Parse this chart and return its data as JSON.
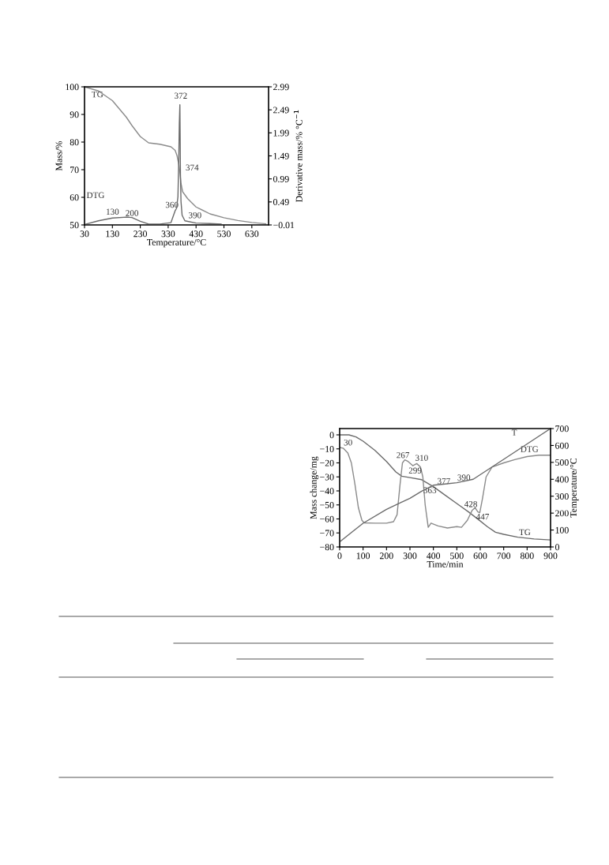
{
  "chart_data": [
    {
      "type": "line",
      "xlabel": "Temperature/°C",
      "ylabel": "Mass/%",
      "y2label": "Derivative mass/% °C$^{−1}$",
      "xlim": [
        30,
        690
      ],
      "xticks": [
        30,
        130,
        230,
        330,
        430,
        530,
        630
      ],
      "ylim": [
        50,
        100
      ],
      "yticks": [
        50,
        60,
        70,
        80,
        90,
        100
      ],
      "y2lim": [
        -0.01,
        2.99
      ],
      "y2ticks": [
        {
          "value": -0.01,
          "label": "−0.01"
        },
        0.49,
        0.99,
        1.49,
        1.99,
        2.49,
        2.99
      ],
      "grid": false,
      "legend": false,
      "series": [
        {
          "color": "#8a8a8a",
          "x": [
            30,
            80,
            130,
            180,
            200,
            230,
            260,
            300,
            340,
            355,
            362,
            368,
            372,
            376,
            382,
            400,
            430,
            480,
            530,
            580,
            630,
            680
          ],
          "values": [
            100,
            98.5,
            95,
            89,
            86,
            82,
            79.7,
            79.2,
            78.3,
            77,
            75,
            72,
            69,
            65,
            62,
            59.5,
            56.5,
            54,
            52.6,
            51.6,
            50.9,
            50.4
          ]
        },
        {
          "color": "#6a6a6a",
          "axis": "y2",
          "x": [
            30,
            80,
            130,
            180,
            200,
            230,
            260,
            300,
            340,
            355,
            360,
            365,
            368,
            370,
            372,
            374,
            376,
            380,
            390,
            430,
            480,
            520
          ],
          "values": [
            0.0,
            0.08,
            0.14,
            0.16,
            0.15,
            0.07,
            0.01,
            0.01,
            0.04,
            0.3,
            0.35,
            0.6,
            1.4,
            2.2,
            2.6,
            1.1,
            0.5,
            0.2,
            0.08,
            0.03,
            0.02,
            0.01
          ]
        }
      ],
      "annotations": [
        "TG",
        "372",
        "374",
        "DTG",
        "130",
        "200",
        "360",
        "390"
      ]
    },
    {
      "type": "line",
      "xlabel": "Time/min",
      "ylabel": "Mass change/mg",
      "y2label": "Temperature/°C",
      "xlim": [
        0,
        900
      ],
      "xticks": [
        0,
        100,
        200,
        300,
        400,
        500,
        600,
        700,
        800,
        900
      ],
      "ylim": [
        -80,
        4.5
      ],
      "yticks": [
        {
          "value": -80,
          "label": "−80"
        },
        {
          "value": -70,
          "label": "−70"
        },
        {
          "value": -60,
          "label": "−60"
        },
        {
          "value": -50,
          "label": "−50"
        },
        {
          "value": -40,
          "label": "−40"
        },
        {
          "value": -30,
          "label": "−30"
        },
        {
          "value": -20,
          "label": "−20"
        },
        {
          "value": -10,
          "label": "−10"
        },
        0
      ],
      "y2lim": [
        0,
        700
      ],
      "y2ticks": [
        0,
        100,
        200,
        300,
        400,
        500,
        600,
        700
      ],
      "grid": false,
      "legend": false,
      "series": [
        {
          "color": "#6a6a6a",
          "x": [
            0,
            40,
            70,
            100,
            150,
            200,
            240,
            265,
            300,
            350,
            380,
            400,
            450,
            500,
            550,
            600,
            630,
            665,
            700,
            760,
            830,
            900
          ],
          "values": [
            0,
            0,
            -1.5,
            -4.5,
            -11,
            -19,
            -26.5,
            -29.5,
            -30.5,
            -32,
            -35,
            -37,
            -43,
            -49,
            -55,
            -61.5,
            -65.5,
            -69.5,
            -71,
            -73,
            -74.3,
            -75
          ]
        },
        {
          "color": "#8a8a8a",
          "x": [
            0,
            15,
            35,
            50,
            65,
            80,
            95,
            105,
            150,
            200,
            230,
            245,
            258,
            268,
            278,
            292,
            312,
            329,
            345,
            355,
            365,
            378,
            390,
            420,
            460,
            500,
            520,
            545,
            565,
            578,
            590,
            598,
            610,
            625,
            650,
            700,
            750,
            800,
            850,
            900
          ],
          "values": [
            -9,
            -9.5,
            -13,
            -20,
            -35,
            -52,
            -61,
            -62.8,
            -63,
            -63,
            -62,
            -57,
            -35,
            -20,
            -17.8,
            -19,
            -22,
            -20.5,
            -23,
            -30,
            -50,
            -66,
            -63,
            -65,
            -66.5,
            -65.5,
            -66,
            -61,
            -54,
            -52,
            -55,
            -55.5,
            -45,
            -30,
            -23,
            -20,
            -17.5,
            -15.5,
            -14.5,
            -14.5
          ]
        },
        {
          "color": "#6a6a6a",
          "axis": "y2",
          "x": [
            0,
            50,
            100,
            200,
            300,
            350,
            400,
            450,
            500,
            570,
            700,
            800,
            900
          ],
          "values": [
            30,
            85,
            140,
            222,
            288,
            330,
            365,
            372,
            380,
            400,
            518,
            609,
            700
          ]
        }
      ],
      "annotations": [
        "30",
        "267",
        "310",
        "299",
        "377",
        "390",
        "363",
        "428",
        "447",
        "T",
        "DTG",
        "TG"
      ]
    }
  ]
}
